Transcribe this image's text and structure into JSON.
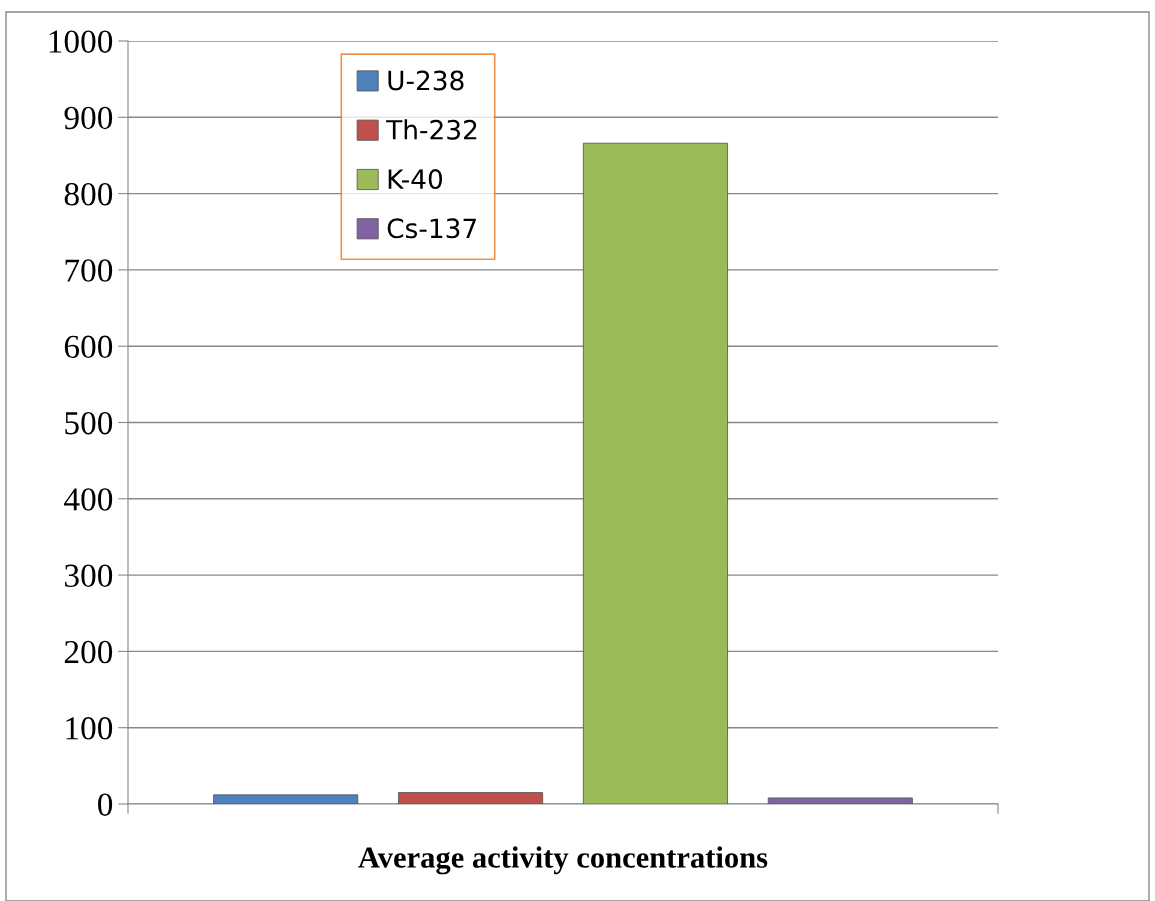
{
  "chart_data": {
    "type": "bar",
    "xlabel": "Average activity concentrations",
    "categories": [
      null
    ],
    "series": [
      {
        "name": "U-238",
        "color": "#4f81bd",
        "values": [
          12
        ]
      },
      {
        "name": "Th-232",
        "color": "#c0504d",
        "values": [
          15
        ]
      },
      {
        "name": "K-40",
        "color": "#9bbb59",
        "values": [
          866
        ]
      },
      {
        "name": "Cs-137",
        "color": "#8064a2",
        "values": [
          8
        ]
      }
    ],
    "ylim": [
      0,
      1000
    ],
    "yticks": [
      0,
      100,
      200,
      300,
      400,
      500,
      600,
      700,
      800,
      900,
      1000
    ],
    "grid": "y",
    "legend": "top left"
  }
}
